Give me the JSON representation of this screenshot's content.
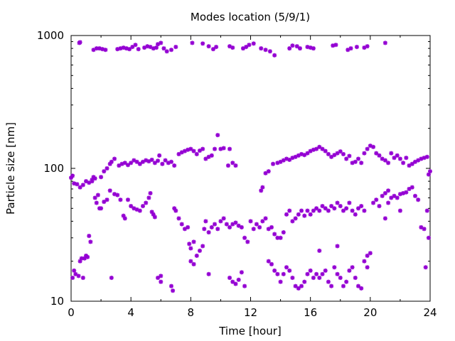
{
  "chart_data": {
    "type": "scatter",
    "title": "Modes location (5/9/1)",
    "xlabel": "Time [hour]",
    "ylabel": "Particle size [nm]",
    "xlim": [
      0,
      24
    ],
    "ylim": [
      10,
      1000
    ],
    "yscale": "log",
    "grid": false,
    "legend": "none",
    "marker": "asterisk",
    "color": "#9400d3",
    "x_ticks": [
      0,
      4,
      8,
      12,
      16,
      20,
      24
    ],
    "x_tick_labels": [
      "0",
      "4",
      "8",
      "12",
      "16",
      "20",
      "24"
    ],
    "y_ticks": [
      10,
      100,
      1000
    ],
    "y_tick_labels": [
      "10",
      "100",
      "1000"
    ],
    "points": [
      [
        0.55,
        880
      ],
      [
        0.6,
        890
      ],
      [
        1.5,
        780
      ],
      [
        1.7,
        800
      ],
      [
        1.9,
        800
      ],
      [
        2.1,
        790
      ],
      [
        2.3,
        780
      ],
      [
        3.1,
        790
      ],
      [
        3.3,
        800
      ],
      [
        3.5,
        810
      ],
      [
        3.7,
        800
      ],
      [
        3.9,
        790
      ],
      [
        4.1,
        820
      ],
      [
        4.3,
        850
      ],
      [
        4.5,
        790
      ],
      [
        4.9,
        810
      ],
      [
        5.1,
        830
      ],
      [
        5.3,
        820
      ],
      [
        5.5,
        800
      ],
      [
        5.7,
        810
      ],
      [
        5.8,
        860
      ],
      [
        6.0,
        880
      ],
      [
        6.2,
        800
      ],
      [
        6.4,
        760
      ],
      [
        6.7,
        780
      ],
      [
        7.0,
        820
      ],
      [
        8.1,
        880
      ],
      [
        8.8,
        870
      ],
      [
        9.2,
        830
      ],
      [
        9.5,
        790
      ],
      [
        9.7,
        820
      ],
      [
        10.6,
        830
      ],
      [
        10.8,
        810
      ],
      [
        11.5,
        800
      ],
      [
        11.7,
        820
      ],
      [
        11.9,
        850
      ],
      [
        12.2,
        870
      ],
      [
        12.7,
        800
      ],
      [
        13.0,
        780
      ],
      [
        13.3,
        760
      ],
      [
        13.6,
        710
      ],
      [
        14.6,
        800
      ],
      [
        14.8,
        840
      ],
      [
        15.1,
        830
      ],
      [
        15.3,
        800
      ],
      [
        15.8,
        820
      ],
      [
        16.0,
        810
      ],
      [
        16.2,
        800
      ],
      [
        17.5,
        840
      ],
      [
        17.7,
        850
      ],
      [
        18.5,
        780
      ],
      [
        18.7,
        800
      ],
      [
        19.1,
        820
      ],
      [
        19.6,
        810
      ],
      [
        19.8,
        830
      ],
      [
        21.0,
        880
      ],
      [
        0.0,
        85
      ],
      [
        0.1,
        88
      ],
      [
        0.2,
        77
      ],
      [
        0.4,
        76
      ],
      [
        0.6,
        72
      ],
      [
        0.8,
        75
      ],
      [
        1.0,
        80
      ],
      [
        1.2,
        78
      ],
      [
        1.4,
        82
      ],
      [
        1.6,
        84
      ],
      [
        2.0,
        86
      ],
      [
        2.2,
        95
      ],
      [
        2.4,
        100
      ],
      [
        2.6,
        108
      ],
      [
        2.7,
        112
      ],
      [
        2.9,
        118
      ],
      [
        3.2,
        105
      ],
      [
        3.4,
        108
      ],
      [
        3.6,
        110
      ],
      [
        3.8,
        106
      ],
      [
        4.0,
        110
      ],
      [
        4.2,
        115
      ],
      [
        4.4,
        112
      ],
      [
        4.6,
        108
      ],
      [
        4.8,
        112
      ],
      [
        5.0,
        115
      ],
      [
        5.2,
        113
      ],
      [
        5.4,
        116
      ],
      [
        5.6,
        110
      ],
      [
        5.8,
        114
      ],
      [
        5.9,
        125
      ],
      [
        6.1,
        108
      ],
      [
        6.3,
        115
      ],
      [
        6.5,
        110
      ],
      [
        6.7,
        112
      ],
      [
        6.9,
        105
      ],
      [
        7.2,
        128
      ],
      [
        7.4,
        132
      ],
      [
        7.6,
        135
      ],
      [
        7.8,
        138
      ],
      [
        8.0,
        140
      ],
      [
        8.2,
        135
      ],
      [
        8.4,
        128
      ],
      [
        8.6,
        136
      ],
      [
        8.8,
        140
      ],
      [
        9.0,
        118
      ],
      [
        9.2,
        122
      ],
      [
        9.4,
        125
      ],
      [
        9.6,
        140
      ],
      [
        9.8,
        178
      ],
      [
        10.0,
        140
      ],
      [
        10.2,
        142
      ],
      [
        10.6,
        140
      ],
      [
        10.8,
        110
      ],
      [
        11.0,
        105
      ],
      [
        13.0,
        92
      ],
      [
        13.2,
        95
      ],
      [
        13.5,
        108
      ],
      [
        13.8,
        110
      ],
      [
        14.0,
        112
      ],
      [
        14.2,
        115
      ],
      [
        14.4,
        118
      ],
      [
        14.6,
        116
      ],
      [
        14.8,
        120
      ],
      [
        15.0,
        122
      ],
      [
        15.2,
        125
      ],
      [
        15.4,
        128
      ],
      [
        15.6,
        126
      ],
      [
        15.8,
        130
      ],
      [
        16.0,
        135
      ],
      [
        16.2,
        138
      ],
      [
        16.4,
        140
      ],
      [
        16.6,
        145
      ],
      [
        16.8,
        140
      ],
      [
        17.0,
        135
      ],
      [
        17.2,
        128
      ],
      [
        17.4,
        122
      ],
      [
        17.6,
        126
      ],
      [
        17.8,
        130
      ],
      [
        18.0,
        134
      ],
      [
        18.2,
        128
      ],
      [
        18.4,
        118
      ],
      [
        18.6,
        124
      ],
      [
        18.8,
        110
      ],
      [
        19.0,
        112
      ],
      [
        19.2,
        118
      ],
      [
        19.4,
        110
      ],
      [
        19.6,
        130
      ],
      [
        19.8,
        140
      ],
      [
        20.0,
        148
      ],
      [
        20.2,
        145
      ],
      [
        20.4,
        130
      ],
      [
        20.6,
        125
      ],
      [
        20.8,
        118
      ],
      [
        21.0,
        115
      ],
      [
        21.2,
        110
      ],
      [
        21.4,
        130
      ],
      [
        21.6,
        120
      ],
      [
        21.8,
        125
      ],
      [
        22.0,
        118
      ],
      [
        22.2,
        110
      ],
      [
        22.4,
        120
      ],
      [
        22.6,
        105
      ],
      [
        22.8,
        108
      ],
      [
        23.0,
        112
      ],
      [
        23.2,
        115
      ],
      [
        23.4,
        118
      ],
      [
        23.6,
        120
      ],
      [
        23.8,
        122
      ],
      [
        24.0,
        95
      ],
      [
        23.9,
        90
      ],
      [
        12.7,
        68
      ],
      [
        12.8,
        72
      ],
      [
        10.5,
        105
      ],
      [
        0.1,
        15
      ],
      [
        0.2,
        17
      ],
      [
        0.3,
        16
      ],
      [
        0.5,
        15.5
      ],
      [
        0.6,
        20
      ],
      [
        0.7,
        21
      ],
      [
        0.8,
        15
      ],
      [
        0.9,
        21
      ],
      [
        1.0,
        22
      ],
      [
        1.1,
        21.5
      ],
      [
        1.2,
        31
      ],
      [
        1.3,
        28
      ],
      [
        1.4,
        80
      ],
      [
        1.5,
        86
      ],
      [
        1.6,
        60
      ],
      [
        1.7,
        55
      ],
      [
        1.8,
        63
      ],
      [
        1.9,
        50
      ],
      [
        2.0,
        50
      ],
      [
        2.2,
        56
      ],
      [
        2.4,
        58
      ],
      [
        2.6,
        68
      ],
      [
        2.7,
        15
      ],
      [
        2.9,
        64
      ],
      [
        3.1,
        63
      ],
      [
        3.3,
        58
      ],
      [
        3.5,
        44
      ],
      [
        3.6,
        42
      ],
      [
        3.8,
        58
      ],
      [
        4.0,
        52
      ],
      [
        4.2,
        50
      ],
      [
        4.4,
        49
      ],
      [
        4.6,
        48
      ],
      [
        4.8,
        52
      ],
      [
        5.0,
        55
      ],
      [
        5.2,
        60
      ],
      [
        5.3,
        65
      ],
      [
        5.4,
        47
      ],
      [
        5.5,
        45
      ],
      [
        5.6,
        43
      ],
      [
        5.8,
        15
      ],
      [
        6.0,
        14
      ],
      [
        6.7,
        13
      ],
      [
        6.8,
        12
      ],
      [
        6.9,
        50
      ],
      [
        7.0,
        48
      ],
      [
        7.2,
        42
      ],
      [
        7.4,
        38
      ],
      [
        7.6,
        35
      ],
      [
        7.8,
        36
      ],
      [
        7.9,
        27
      ],
      [
        8.0,
        25
      ],
      [
        8.2,
        28
      ],
      [
        8.4,
        22
      ],
      [
        8.6,
        24
      ],
      [
        8.8,
        26
      ],
      [
        8.9,
        35
      ],
      [
        9.0,
        40
      ],
      [
        9.2,
        33
      ],
      [
        9.4,
        36
      ],
      [
        9.6,
        38
      ],
      [
        9.8,
        35
      ],
      [
        10.0,
        40
      ],
      [
        10.2,
        42
      ],
      [
        10.4,
        38
      ],
      [
        10.6,
        36
      ],
      [
        10.8,
        38
      ],
      [
        11.0,
        39
      ],
      [
        11.2,
        37
      ],
      [
        11.4,
        36
      ],
      [
        11.6,
        30
      ],
      [
        11.8,
        28
      ],
      [
        12.0,
        40
      ],
      [
        12.2,
        35
      ],
      [
        12.4,
        38
      ],
      [
        12.6,
        36
      ],
      [
        12.8,
        40
      ],
      [
        13.0,
        42
      ],
      [
        13.2,
        35
      ],
      [
        13.4,
        36
      ],
      [
        13.6,
        32
      ],
      [
        13.8,
        30
      ],
      [
        14.0,
        30
      ],
      [
        14.2,
        33
      ],
      [
        14.4,
        45
      ],
      [
        14.6,
        48
      ],
      [
        14.8,
        40
      ],
      [
        15.0,
        42
      ],
      [
        15.2,
        45
      ],
      [
        15.4,
        48
      ],
      [
        15.6,
        44
      ],
      [
        15.8,
        48
      ],
      [
        16.0,
        45
      ],
      [
        16.2,
        48
      ],
      [
        16.4,
        50
      ],
      [
        16.6,
        48
      ],
      [
        16.8,
        52
      ],
      [
        17.0,
        50
      ],
      [
        17.2,
        48
      ],
      [
        17.4,
        52
      ],
      [
        17.6,
        50
      ],
      [
        17.8,
        55
      ],
      [
        18.0,
        52
      ],
      [
        18.2,
        48
      ],
      [
        18.4,
        50
      ],
      [
        18.6,
        55
      ],
      [
        18.8,
        48
      ],
      [
        19.0,
        45
      ],
      [
        19.2,
        50
      ],
      [
        19.4,
        52
      ],
      [
        19.6,
        48
      ],
      [
        19.8,
        22
      ],
      [
        20.0,
        23
      ],
      [
        20.2,
        55
      ],
      [
        20.4,
        58
      ],
      [
        20.6,
        52
      ],
      [
        20.8,
        62
      ],
      [
        21.0,
        65
      ],
      [
        21.2,
        68
      ],
      [
        21.4,
        60
      ],
      [
        21.6,
        62
      ],
      [
        21.8,
        60
      ],
      [
        22.0,
        64
      ],
      [
        22.2,
        65
      ],
      [
        22.4,
        66
      ],
      [
        22.6,
        70
      ],
      [
        22.8,
        72
      ],
      [
        23.0,
        62
      ],
      [
        23.2,
        58
      ],
      [
        23.4,
        36
      ],
      [
        23.6,
        35
      ],
      [
        23.7,
        18
      ],
      [
        23.8,
        48
      ],
      [
        23.9,
        30
      ],
      [
        6.0,
        15.5
      ],
      [
        8.0,
        20
      ],
      [
        8.2,
        19
      ],
      [
        9.2,
        16
      ],
      [
        10.6,
        15
      ],
      [
        10.8,
        14
      ],
      [
        11.0,
        13.5
      ],
      [
        11.2,
        14.5
      ],
      [
        11.4,
        16.5
      ],
      [
        11.6,
        13
      ],
      [
        13.2,
        20
      ],
      [
        13.4,
        19
      ],
      [
        13.6,
        17
      ],
      [
        13.8,
        16
      ],
      [
        14.0,
        14
      ],
      [
        14.2,
        16
      ],
      [
        14.4,
        18
      ],
      [
        14.6,
        17
      ],
      [
        14.8,
        15
      ],
      [
        15.0,
        13
      ],
      [
        15.2,
        12.5
      ],
      [
        15.4,
        13
      ],
      [
        15.6,
        14
      ],
      [
        15.8,
        16
      ],
      [
        16.0,
        17
      ],
      [
        16.2,
        15
      ],
      [
        16.4,
        16
      ],
      [
        16.6,
        15
      ],
      [
        16.8,
        16
      ],
      [
        17.0,
        17
      ],
      [
        17.2,
        14
      ],
      [
        17.4,
        13
      ],
      [
        17.6,
        18
      ],
      [
        17.8,
        16
      ],
      [
        18.0,
        15
      ],
      [
        18.2,
        13
      ],
      [
        18.4,
        14
      ],
      [
        18.6,
        17
      ],
      [
        18.8,
        18
      ],
      [
        19.0,
        15
      ],
      [
        19.2,
        13
      ],
      [
        19.4,
        12.5
      ],
      [
        19.6,
        20
      ],
      [
        19.8,
        18
      ],
      [
        16.6,
        24
      ],
      [
        17.8,
        26
      ],
      [
        21.0,
        42
      ],
      [
        21.2,
        55
      ],
      [
        22.0,
        48
      ]
    ]
  }
}
